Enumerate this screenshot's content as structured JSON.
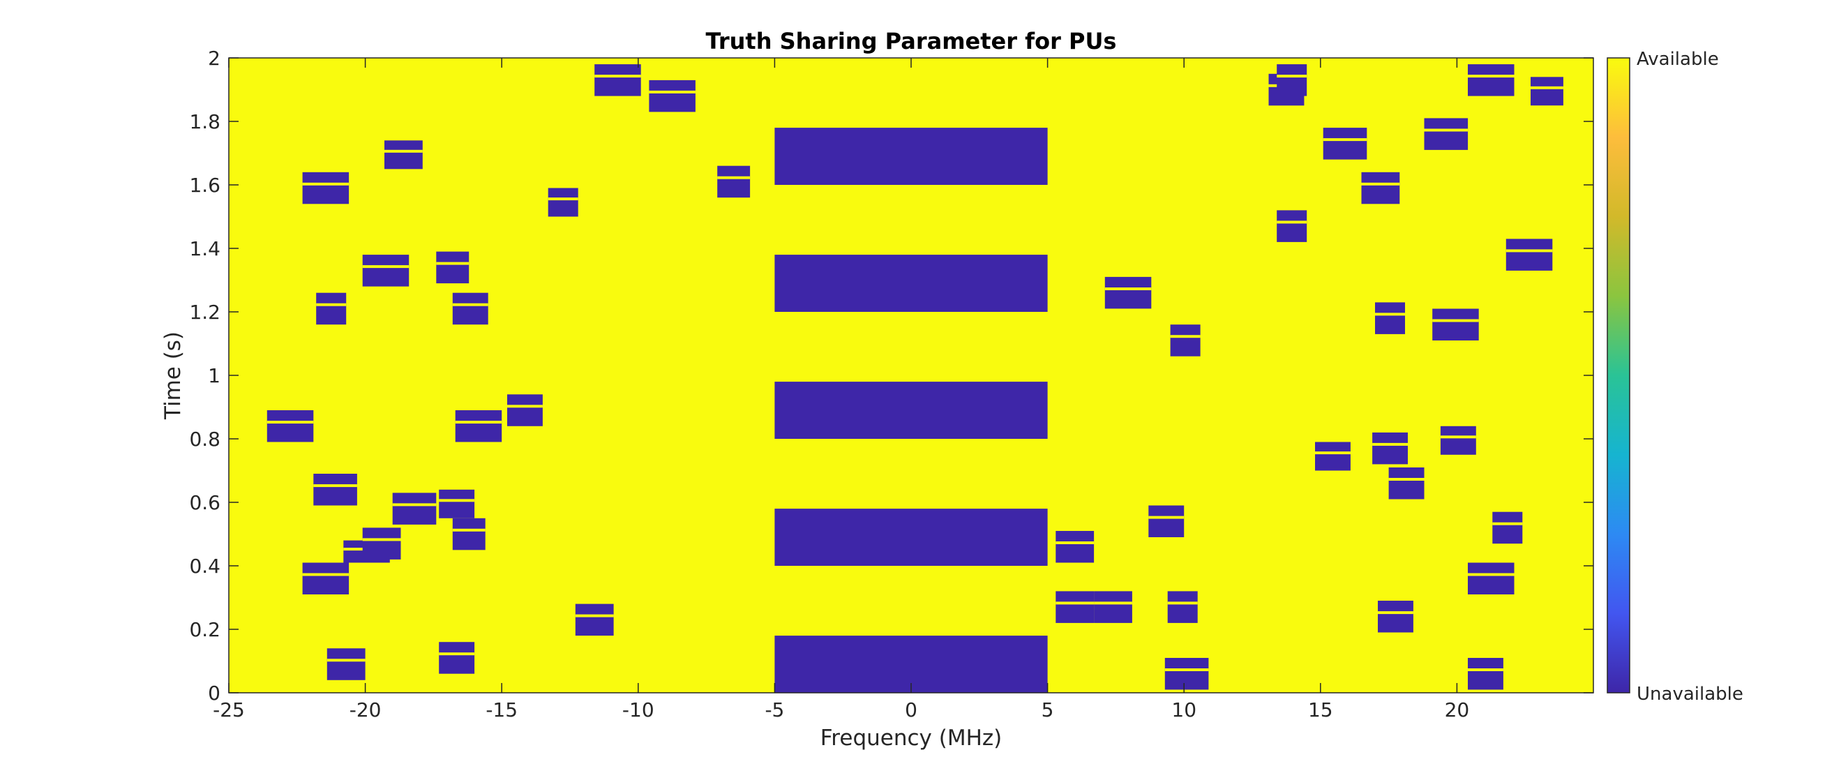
{
  "chart_data": {
    "type": "heatmap",
    "title": "Truth Sharing Parameter for PUs",
    "xlabel": "Frequency (MHz)",
    "ylabel": "Time (s)",
    "xlim": [
      -25,
      25
    ],
    "ylim": [
      0,
      2
    ],
    "x_ticks": [
      -25,
      -20,
      -15,
      -10,
      -5,
      0,
      5,
      10,
      15,
      20
    ],
    "x_tick_labels": [
      "-25",
      "-20",
      "-15",
      "-10",
      "-5",
      "0",
      "5",
      "10",
      "15",
      "20"
    ],
    "y_ticks": [
      0,
      0.2,
      0.4,
      0.6,
      0.8,
      1,
      1.2,
      1.4,
      1.6,
      1.8,
      2
    ],
    "y_tick_labels": [
      "0",
      "0.2",
      "0.4",
      "0.6",
      "0.8",
      "1",
      "1.2",
      "1.4",
      "1.6",
      "1.8",
      "2"
    ],
    "grid": false,
    "background_value": "Available",
    "colorbar": {
      "location": "right",
      "top_label": "Available",
      "bottom_label": "Unavailable",
      "colormap": "parula"
    },
    "colors": {
      "available": "#f9fb0e",
      "unavailable": "#3e26a8",
      "colorbar_stops": [
        "#3e26a8",
        "#4256f0",
        "#2d8af3",
        "#16b4d0",
        "#2ac396",
        "#8bc53f",
        "#d2b92a",
        "#fdbd3c",
        "#f9fb0e"
      ]
    },
    "unavailable_blocks": [
      {
        "f": [
          -5,
          5
        ],
        "t": [
          0.0,
          0.18
        ]
      },
      {
        "f": [
          -5,
          5
        ],
        "t": [
          0.4,
          0.58
        ]
      },
      {
        "f": [
          -5,
          5
        ],
        "t": [
          0.8,
          0.98
        ]
      },
      {
        "f": [
          -5,
          5
        ],
        "t": [
          1.2,
          1.38
        ]
      },
      {
        "f": [
          -5,
          5
        ],
        "t": [
          1.6,
          1.78
        ]
      },
      {
        "f": [
          -23.6,
          -21.9
        ],
        "t": [
          0.79,
          0.89
        ]
      },
      {
        "f": [
          -22.3,
          -20.6
        ],
        "t": [
          1.54,
          1.64
        ]
      },
      {
        "f": [
          -21.8,
          -20.7
        ],
        "t": [
          1.16,
          1.26
        ]
      },
      {
        "f": [
          -21.9,
          -20.3
        ],
        "t": [
          0.59,
          0.69
        ]
      },
      {
        "f": [
          -22.3,
          -20.6
        ],
        "t": [
          0.31,
          0.41
        ]
      },
      {
        "f": [
          -21.4,
          -20.0
        ],
        "t": [
          0.04,
          0.14
        ]
      },
      {
        "f": [
          -20.8,
          -19.1
        ],
        "t": [
          0.41,
          0.48
        ]
      },
      {
        "f": [
          -20.1,
          -18.4
        ],
        "t": [
          1.28,
          1.38
        ]
      },
      {
        "f": [
          -20.1,
          -18.7
        ],
        "t": [
          0.42,
          0.52
        ]
      },
      {
        "f": [
          -19.3,
          -17.9
        ],
        "t": [
          1.65,
          1.74
        ]
      },
      {
        "f": [
          -19.0,
          -17.4
        ],
        "t": [
          0.53,
          0.63
        ]
      },
      {
        "f": [
          -17.4,
          -16.2
        ],
        "t": [
          1.29,
          1.39
        ]
      },
      {
        "f": [
          -17.3,
          -16.0
        ],
        "t": [
          0.55,
          0.64
        ]
      },
      {
        "f": [
          -16.8,
          -15.5
        ],
        "t": [
          1.16,
          1.26
        ]
      },
      {
        "f": [
          -16.8,
          -15.6
        ],
        "t": [
          0.45,
          0.55
        ]
      },
      {
        "f": [
          -17.3,
          -16.0
        ],
        "t": [
          0.06,
          0.16
        ]
      },
      {
        "f": [
          -16.7,
          -15.0
        ],
        "t": [
          0.79,
          0.89
        ]
      },
      {
        "f": [
          -14.8,
          -13.5
        ],
        "t": [
          0.84,
          0.94
        ]
      },
      {
        "f": [
          -13.3,
          -12.2
        ],
        "t": [
          1.5,
          1.59
        ]
      },
      {
        "f": [
          -12.3,
          -10.9
        ],
        "t": [
          0.18,
          0.28
        ]
      },
      {
        "f": [
          -11.6,
          -9.9
        ],
        "t": [
          1.88,
          1.98
        ]
      },
      {
        "f": [
          -9.6,
          -7.9
        ],
        "t": [
          1.83,
          1.93
        ]
      },
      {
        "f": [
          -7.1,
          -5.9
        ],
        "t": [
          1.56,
          1.66
        ]
      },
      {
        "f": [
          5.3,
          6.7
        ],
        "t": [
          0.41,
          0.51
        ]
      },
      {
        "f": [
          5.3,
          6.7
        ],
        "t": [
          0.22,
          0.32
        ]
      },
      {
        "f": [
          6.7,
          8.1
        ],
        "t": [
          0.22,
          0.32
        ]
      },
      {
        "f": [
          7.1,
          8.8
        ],
        "t": [
          1.21,
          1.31
        ]
      },
      {
        "f": [
          8.7,
          10.0
        ],
        "t": [
          0.49,
          0.59
        ]
      },
      {
        "f": [
          9.4,
          10.5
        ],
        "t": [
          0.22,
          0.32
        ]
      },
      {
        "f": [
          9.3,
          10.9
        ],
        "t": [
          0.01,
          0.11
        ]
      },
      {
        "f": [
          9.5,
          10.6
        ],
        "t": [
          1.06,
          1.16
        ]
      },
      {
        "f": [
          13.1,
          14.4
        ],
        "t": [
          1.85,
          1.95
        ]
      },
      {
        "f": [
          13.4,
          14.5
        ],
        "t": [
          1.88,
          1.98
        ]
      },
      {
        "f": [
          13.4,
          14.5
        ],
        "t": [
          1.42,
          1.52
        ]
      },
      {
        "f": [
          14.8,
          16.1
        ],
        "t": [
          0.7,
          0.79
        ]
      },
      {
        "f": [
          15.1,
          16.7
        ],
        "t": [
          1.68,
          1.78
        ]
      },
      {
        "f": [
          16.5,
          17.9
        ],
        "t": [
          1.54,
          1.64
        ]
      },
      {
        "f": [
          17.0,
          18.1
        ],
        "t": [
          1.13,
          1.23
        ]
      },
      {
        "f": [
          16.9,
          18.2
        ],
        "t": [
          0.72,
          0.82
        ]
      },
      {
        "f": [
          17.1,
          18.4
        ],
        "t": [
          0.19,
          0.29
        ]
      },
      {
        "f": [
          17.5,
          18.8
        ],
        "t": [
          0.61,
          0.71
        ]
      },
      {
        "f": [
          18.8,
          20.4
        ],
        "t": [
          1.71,
          1.81
        ]
      },
      {
        "f": [
          19.4,
          20.7
        ],
        "t": [
          0.75,
          0.84
        ]
      },
      {
        "f": [
          19.1,
          20.8
        ],
        "t": [
          1.11,
          1.21
        ]
      },
      {
        "f": [
          20.4,
          22.1
        ],
        "t": [
          1.88,
          1.98
        ]
      },
      {
        "f": [
          20.4,
          21.7
        ],
        "t": [
          0.01,
          0.11
        ]
      },
      {
        "f": [
          20.4,
          22.1
        ],
        "t": [
          0.31,
          0.41
        ]
      },
      {
        "f": [
          21.3,
          22.4
        ],
        "t": [
          0.47,
          0.57
        ]
      },
      {
        "f": [
          21.8,
          23.5
        ],
        "t": [
          1.33,
          1.43
        ]
      },
      {
        "f": [
          22.7,
          23.9
        ],
        "t": [
          1.85,
          1.94
        ]
      }
    ]
  }
}
